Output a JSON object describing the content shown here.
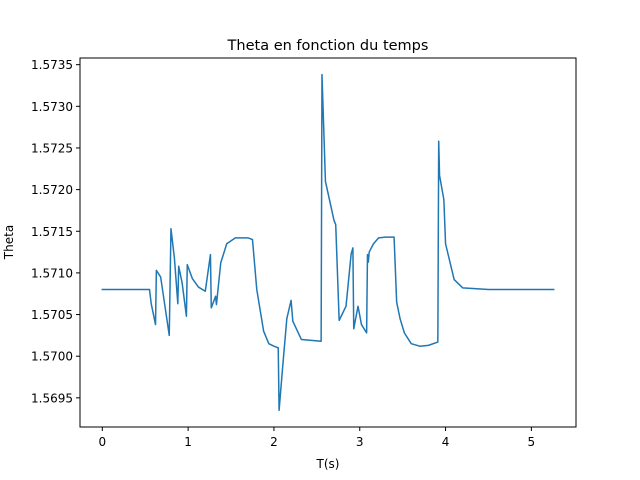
{
  "chart_data": {
    "type": "line",
    "title": "Theta en fonction du temps",
    "xlabel": "T(s)",
    "ylabel": "Theta",
    "xlim": [
      -0.26,
      5.52
    ],
    "ylim": [
      1.56915,
      1.57358
    ],
    "xticks": [
      0,
      1,
      2,
      3,
      4,
      5
    ],
    "xtick_labels": [
      "0",
      "1",
      "2",
      "3",
      "4",
      "5"
    ],
    "yticks": [
      1.5695,
      1.57,
      1.5705,
      1.571,
      1.5715,
      1.572,
      1.5725,
      1.573,
      1.5735
    ],
    "ytick_labels": [
      "1.5695",
      "1.5700",
      "1.5705",
      "1.5710",
      "1.5715",
      "1.5720",
      "1.5725",
      "1.5730",
      "1.5735"
    ],
    "grid": false,
    "series": [
      {
        "color": "#1f77b4",
        "x": [
          0,
          0.55,
          0.57,
          0.62,
          0.63,
          0.68,
          0.78,
          0.8,
          0.84,
          0.88,
          0.89,
          0.93,
          0.98,
          0.99,
          1.05,
          1.12,
          1.2,
          1.26,
          1.27,
          1.32,
          1.33,
          1.38,
          1.45,
          1.55,
          1.7,
          1.75,
          1.8,
          1.88,
          1.94,
          2.0,
          2.05,
          2.06,
          2.1,
          2.15,
          2.2,
          2.22,
          2.32,
          2.55,
          2.56,
          2.6,
          2.7,
          2.72,
          2.76,
          2.84,
          2.9,
          2.92,
          2.93,
          2.98,
          3.02,
          3.08,
          3.09,
          3.1,
          3.11,
          3.16,
          3.22,
          3.3,
          3.38,
          3.4,
          3.43,
          3.47,
          3.52,
          3.6,
          3.7,
          3.8,
          3.91,
          3.92,
          3.93,
          3.98,
          4.0,
          4.1,
          4.2,
          4.5,
          5.26
        ],
        "y": [
          1.5708,
          1.5708,
          1.57063,
          1.57038,
          1.57103,
          1.57095,
          1.57025,
          1.57153,
          1.57118,
          1.57063,
          1.57108,
          1.57088,
          1.57048,
          1.5711,
          1.57093,
          1.57083,
          1.57078,
          1.57122,
          1.57058,
          1.57072,
          1.57062,
          1.57112,
          1.57135,
          1.57142,
          1.57142,
          1.5714,
          1.5708,
          1.5703,
          1.57015,
          1.57012,
          1.5701,
          1.56935,
          1.56985,
          1.57045,
          1.57067,
          1.57042,
          1.5702,
          1.57018,
          1.57338,
          1.5721,
          1.57163,
          1.57158,
          1.57043,
          1.5706,
          1.57123,
          1.5713,
          1.57033,
          1.5706,
          1.57038,
          1.57028,
          1.57122,
          1.57113,
          1.57125,
          1.57135,
          1.57142,
          1.57143,
          1.57143,
          1.57143,
          1.57065,
          1.57045,
          1.57028,
          1.57015,
          1.57012,
          1.57013,
          1.57017,
          1.57258,
          1.57217,
          1.57188,
          1.57135,
          1.57092,
          1.57082,
          1.5708,
          1.5708
        ]
      }
    ]
  }
}
